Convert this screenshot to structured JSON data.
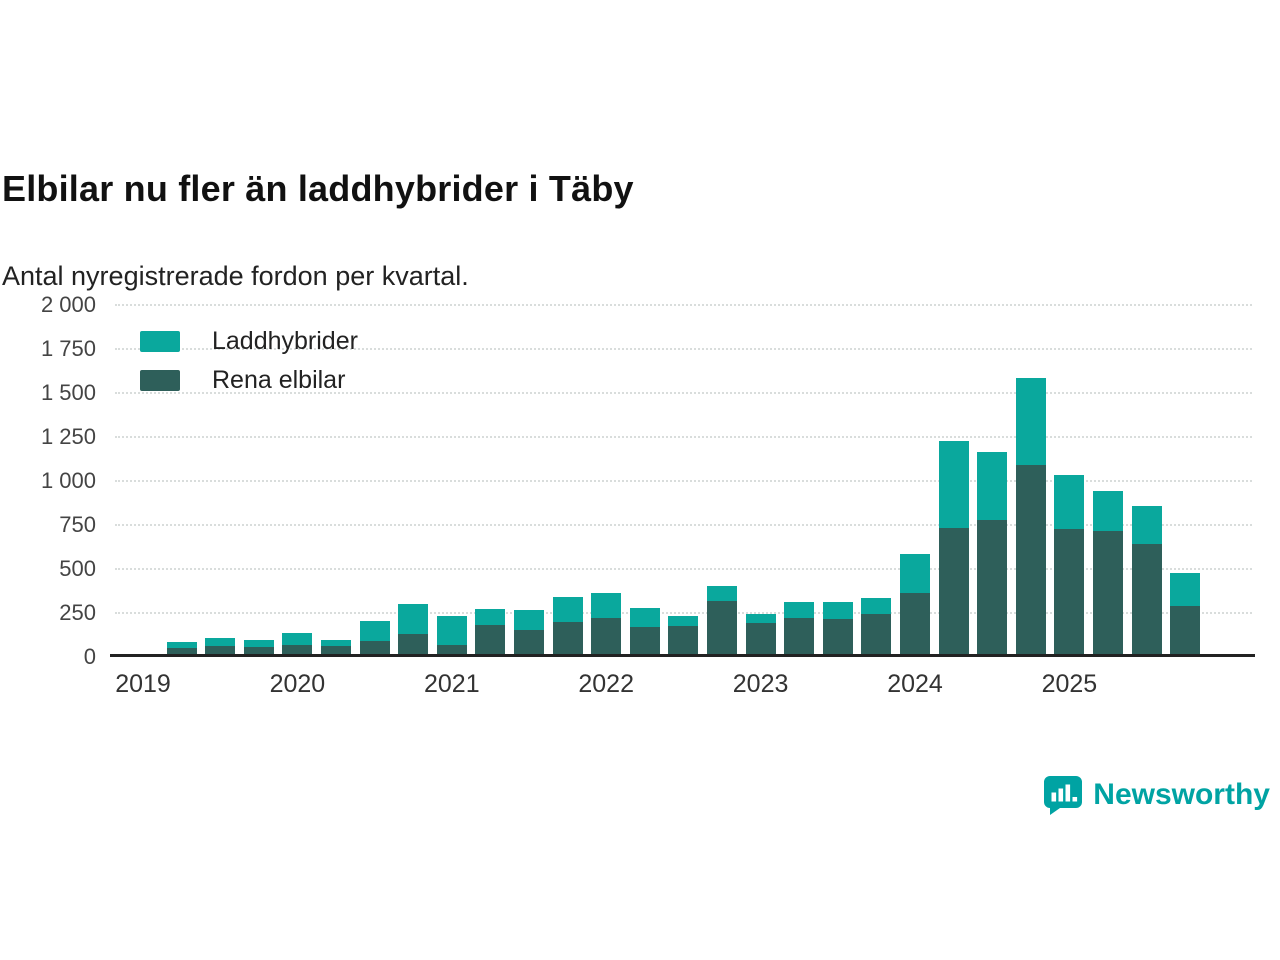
{
  "header": {
    "title": "Elbilar nu fler än laddhybrider i Täby",
    "subtitle": "Antal nyregistrerade fordon per kvartal."
  },
  "legend": {
    "items": [
      {
        "label": "Laddhybrider",
        "color": "#0aa89d"
      },
      {
        "label": "Rena elbilar",
        "color": "#2e5f5a"
      }
    ]
  },
  "branding": {
    "name": "Newsworthy",
    "color": "#00a3a3"
  },
  "chart_data": {
    "type": "bar",
    "stacked": true,
    "title": "Elbilar nu fler än laddhybrider i Täby",
    "subtitle": "Antal nyregistrerade fordon per kvartal.",
    "ylabel": "Antal nyregistrerade fordon",
    "ylim": [
      0,
      2000
    ],
    "grid": "horizontal-dotted",
    "legend_position": "top-left-inside",
    "series": [
      {
        "name": "Laddhybrider",
        "color": "#0aa89d"
      },
      {
        "name": "Rena elbilar",
        "color": "#2e5f5a"
      }
    ],
    "yticks": [
      {
        "value": 0,
        "label": "0"
      },
      {
        "value": 250,
        "label": "250"
      },
      {
        "value": 500,
        "label": "500"
      },
      {
        "value": 750,
        "label": "750"
      },
      {
        "value": 1000,
        "label": "1 000"
      },
      {
        "value": 1250,
        "label": "1 250"
      },
      {
        "value": 1500,
        "label": "1 500"
      },
      {
        "value": 1750,
        "label": "1 750"
      },
      {
        "value": 2000,
        "label": "2 000"
      }
    ],
    "xticks": [
      {
        "slot": 0,
        "label": "2019"
      },
      {
        "slot": 4,
        "label": "2020"
      },
      {
        "slot": 8,
        "label": "2021"
      },
      {
        "slot": 12,
        "label": "2022"
      },
      {
        "slot": 16,
        "label": "2023"
      },
      {
        "slot": 20,
        "label": "2024"
      },
      {
        "slot": 24,
        "label": "2025"
      }
    ],
    "quarters": [
      {
        "label": "2019 Q2",
        "slot": 1,
        "rena_elbilar": 45,
        "laddhybrider": 35
      },
      {
        "label": "2019 Q3",
        "slot": 2,
        "rena_elbilar": 55,
        "laddhybrider": 45
      },
      {
        "label": "2019 Q4",
        "slot": 3,
        "rena_elbilar": 50,
        "laddhybrider": 40
      },
      {
        "label": "2020 Q1",
        "slot": 4,
        "rena_elbilar": 60,
        "laddhybrider": 70
      },
      {
        "label": "2020 Q2",
        "slot": 5,
        "rena_elbilar": 55,
        "laddhybrider": 35
      },
      {
        "label": "2020 Q3",
        "slot": 6,
        "rena_elbilar": 85,
        "laddhybrider": 115
      },
      {
        "label": "2020 Q4",
        "slot": 7,
        "rena_elbilar": 125,
        "laddhybrider": 170
      },
      {
        "label": "2021 Q1",
        "slot": 8,
        "rena_elbilar": 65,
        "laddhybrider": 160
      },
      {
        "label": "2021 Q2",
        "slot": 9,
        "rena_elbilar": 175,
        "laddhybrider": 90
      },
      {
        "label": "2021 Q3",
        "slot": 10,
        "rena_elbilar": 150,
        "laddhybrider": 110
      },
      {
        "label": "2021 Q4",
        "slot": 11,
        "rena_elbilar": 195,
        "laddhybrider": 140
      },
      {
        "label": "2022 Q1",
        "slot": 12,
        "rena_elbilar": 215,
        "laddhybrider": 145
      },
      {
        "label": "2022 Q2",
        "slot": 13,
        "rena_elbilar": 165,
        "laddhybrider": 110
      },
      {
        "label": "2022 Q3",
        "slot": 14,
        "rena_elbilar": 170,
        "laddhybrider": 55
      },
      {
        "label": "2022 Q4",
        "slot": 15,
        "rena_elbilar": 310,
        "laddhybrider": 90
      },
      {
        "label": "2023 Q1",
        "slot": 16,
        "rena_elbilar": 185,
        "laddhybrider": 55
      },
      {
        "label": "2023 Q2",
        "slot": 17,
        "rena_elbilar": 215,
        "laddhybrider": 90
      },
      {
        "label": "2023 Q3",
        "slot": 18,
        "rena_elbilar": 210,
        "laddhybrider": 95
      },
      {
        "label": "2023 Q4",
        "slot": 19,
        "rena_elbilar": 240,
        "laddhybrider": 90
      },
      {
        "label": "2024 Q1",
        "slot": 20,
        "rena_elbilar": 360,
        "laddhybrider": 220
      },
      {
        "label": "2024 Q2",
        "slot": 21,
        "rena_elbilar": 730,
        "laddhybrider": 490
      },
      {
        "label": "2024 Q3",
        "slot": 22,
        "rena_elbilar": 775,
        "laddhybrider": 385
      },
      {
        "label": "2024 Q4",
        "slot": 23,
        "rena_elbilar": 1085,
        "laddhybrider": 495
      },
      {
        "label": "2025 Q1",
        "slot": 24,
        "rena_elbilar": 720,
        "laddhybrider": 310
      },
      {
        "label": "2025 Q2",
        "slot": 25,
        "rena_elbilar": 710,
        "laddhybrider": 230
      },
      {
        "label": "2025 Q3",
        "slot": 26,
        "rena_elbilar": 635,
        "laddhybrider": 215
      },
      {
        "label": "2025 Q4",
        "slot": 27,
        "rena_elbilar": 285,
        "laddhybrider": 185
      }
    ]
  }
}
